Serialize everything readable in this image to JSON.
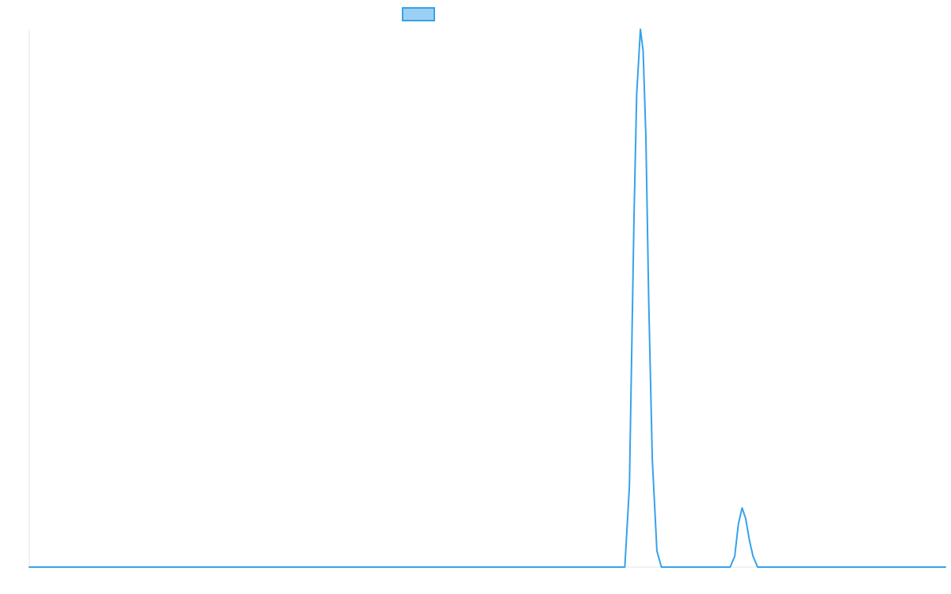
{
  "chart_data": {
    "type": "line",
    "title": "",
    "xlabel": "",
    "ylabel": "",
    "xlim": [
      0,
      1000
    ],
    "ylim": [
      0,
      100
    ],
    "grid": false,
    "legend": {
      "placement": "top-center",
      "entries": [
        {
          "label": "",
          "color": "#36a2eb",
          "fill": "#9ad0f5"
        }
      ]
    },
    "series": [
      {
        "color": "#36a2eb",
        "x": [
          0,
          645,
          650,
          655,
          660,
          663,
          667,
          670,
          673,
          676,
          680,
          685,
          690,
          695,
          700,
          760,
          765,
          770,
          774,
          778,
          782,
          786,
          790,
          795,
          800,
          805,
          1000
        ],
        "y": [
          0,
          0,
          0,
          15,
          65,
          88,
          100,
          96,
          80,
          50,
          20,
          3,
          0,
          0,
          0,
          0,
          0,
          2,
          8,
          11,
          9,
          5,
          2,
          0,
          0,
          0,
          0
        ]
      }
    ]
  }
}
